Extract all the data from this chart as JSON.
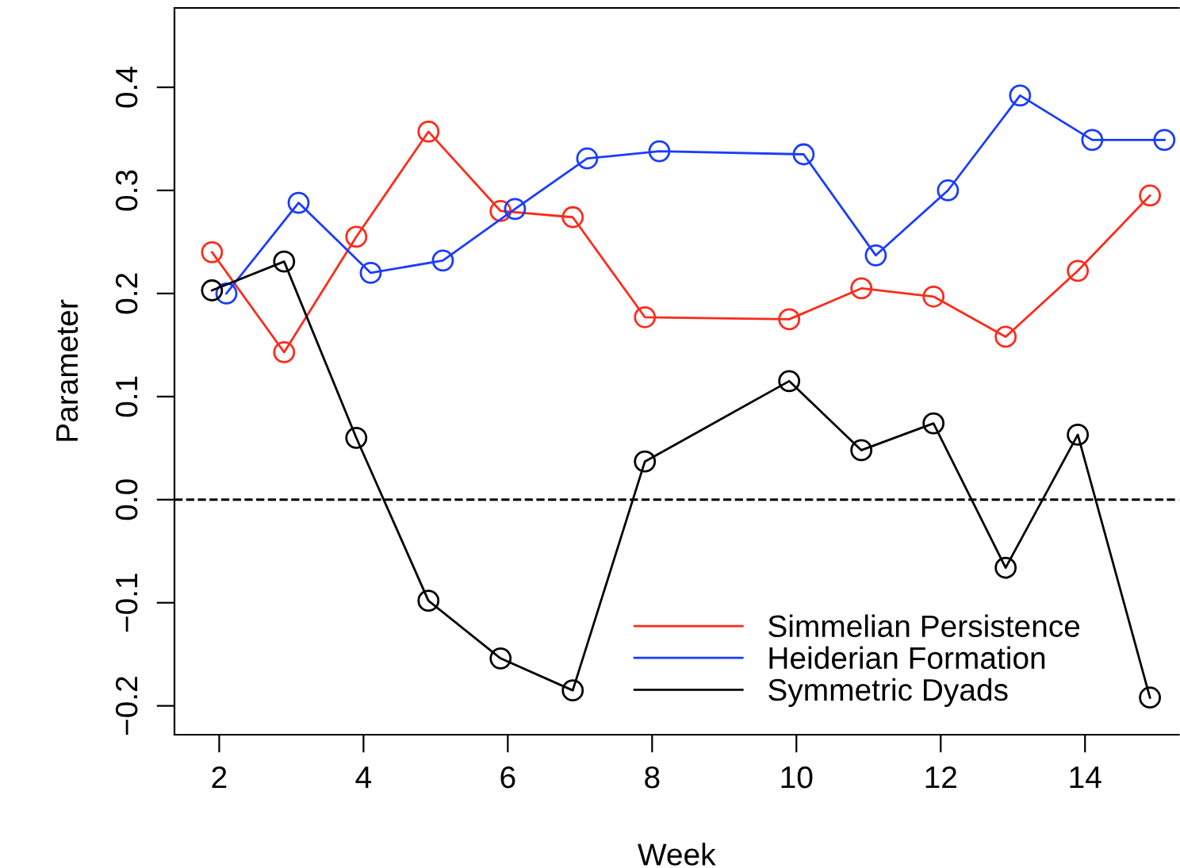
{
  "chart_data": {
    "type": "line",
    "xlabel": "Week",
    "ylabel": "Parameter",
    "xlim": [
      1.38,
      15.3
    ],
    "xticks": [
      2,
      4,
      6,
      8,
      10,
      12,
      14
    ],
    "ylim": [
      -0.228,
      0.477
    ],
    "yticks": [
      -0.2,
      -0.1,
      {
        "value": 0,
        "label": "0.0"
      },
      0.1,
      0.2,
      0.3,
      0.4
    ],
    "marker": "circle",
    "line_style": "solid",
    "legend": "bottom right",
    "grid": false,
    "ref_lines": [
      {
        "axis": "y",
        "value": 0,
        "color": "#000000",
        "line_style": "dashed"
      }
    ],
    "series": [
      {
        "name": "Simmelian Persistence",
        "color": "#ff2a1a",
        "x": [
          1.9,
          2.9,
          3.9,
          4.9,
          5.9,
          6.9,
          7.9,
          9.9,
          10.9,
          11.9,
          12.9,
          13.9,
          14.9
        ],
        "values": [
          0.24,
          0.143,
          0.255,
          0.357,
          0.28,
          0.274,
          0.177,
          0.175,
          0.205,
          0.197,
          0.158,
          0.222,
          0.295
        ]
      },
      {
        "name": "Heiderian Formation",
        "color": "#1a3cff",
        "x": [
          2.1,
          3.1,
          4.1,
          5.1,
          6.1,
          7.1,
          8.1,
          10.1,
          11.1,
          12.1,
          13.1,
          14.1,
          15.1
        ],
        "values": [
          0.2,
          0.288,
          0.22,
          0.232,
          0.282,
          0.331,
          0.338,
          0.335,
          0.237,
          0.3,
          0.392,
          0.349,
          0.349
        ]
      },
      {
        "name": "Symmetric Dyads",
        "color": "#000000",
        "x": [
          1.9,
          2.9,
          3.9,
          4.9,
          5.9,
          6.9,
          7.9,
          9.9,
          10.9,
          11.9,
          12.9,
          13.9,
          14.9
        ],
        "values": [
          0.203,
          0.231,
          0.06,
          -0.098,
          -0.154,
          -0.185,
          0.037,
          0.115,
          0.048,
          0.074,
          -0.066,
          0.063,
          -0.192
        ]
      }
    ]
  }
}
